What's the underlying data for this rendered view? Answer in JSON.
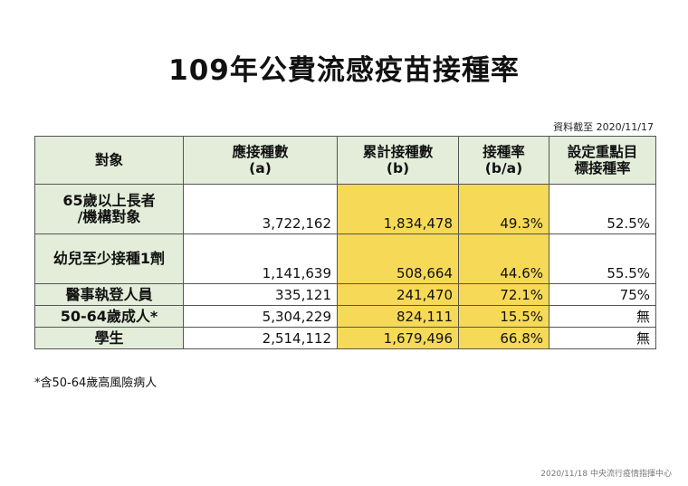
{
  "title": "109年公費流感疫苗接種率",
  "as_of": "資料截至 2020/11/17",
  "table": {
    "headers": [
      {
        "lines": [
          "對象"
        ]
      },
      {
        "lines": [
          "應接種數",
          "(a)"
        ]
      },
      {
        "lines": [
          "累計接種數",
          "(b)"
        ]
      },
      {
        "lines": [
          "接種率",
          "(b/a)"
        ]
      },
      {
        "lines": [
          "設定重點目",
          "標接種率"
        ]
      }
    ],
    "rows": [
      {
        "group_lines": [
          "65歲以上長者",
          "/機構對象"
        ],
        "eligible": "3,722,162",
        "cumulative": "1,834,478",
        "rate": "49.3%",
        "target": "52.5%"
      },
      {
        "group_lines": [
          "幼兒至少接種1劑"
        ],
        "eligible": "1,141,639",
        "cumulative": "508,664",
        "rate": "44.6%",
        "target": "55.5%"
      },
      {
        "group_lines": [
          "醫事執登人員"
        ],
        "eligible": "335,121",
        "cumulative": "241,470",
        "rate": "72.1%",
        "target": "75%"
      },
      {
        "group_lines": [
          "50-64歲成人*"
        ],
        "eligible": "5,304,229",
        "cumulative": "824,111",
        "rate": "15.5%",
        "target": "無"
      },
      {
        "group_lines": [
          "學生"
        ],
        "eligible": "2,514,112",
        "cumulative": "1,679,496",
        "rate": "66.8%",
        "target": "無"
      }
    ]
  },
  "colors": {
    "header_bg": "#e3edda",
    "highlight": "#f5d957",
    "border": "#555555"
  },
  "footnote": "*含50-64歲高風險病人",
  "footer": "2020/11/18 中央流行疫情指揮中心"
}
